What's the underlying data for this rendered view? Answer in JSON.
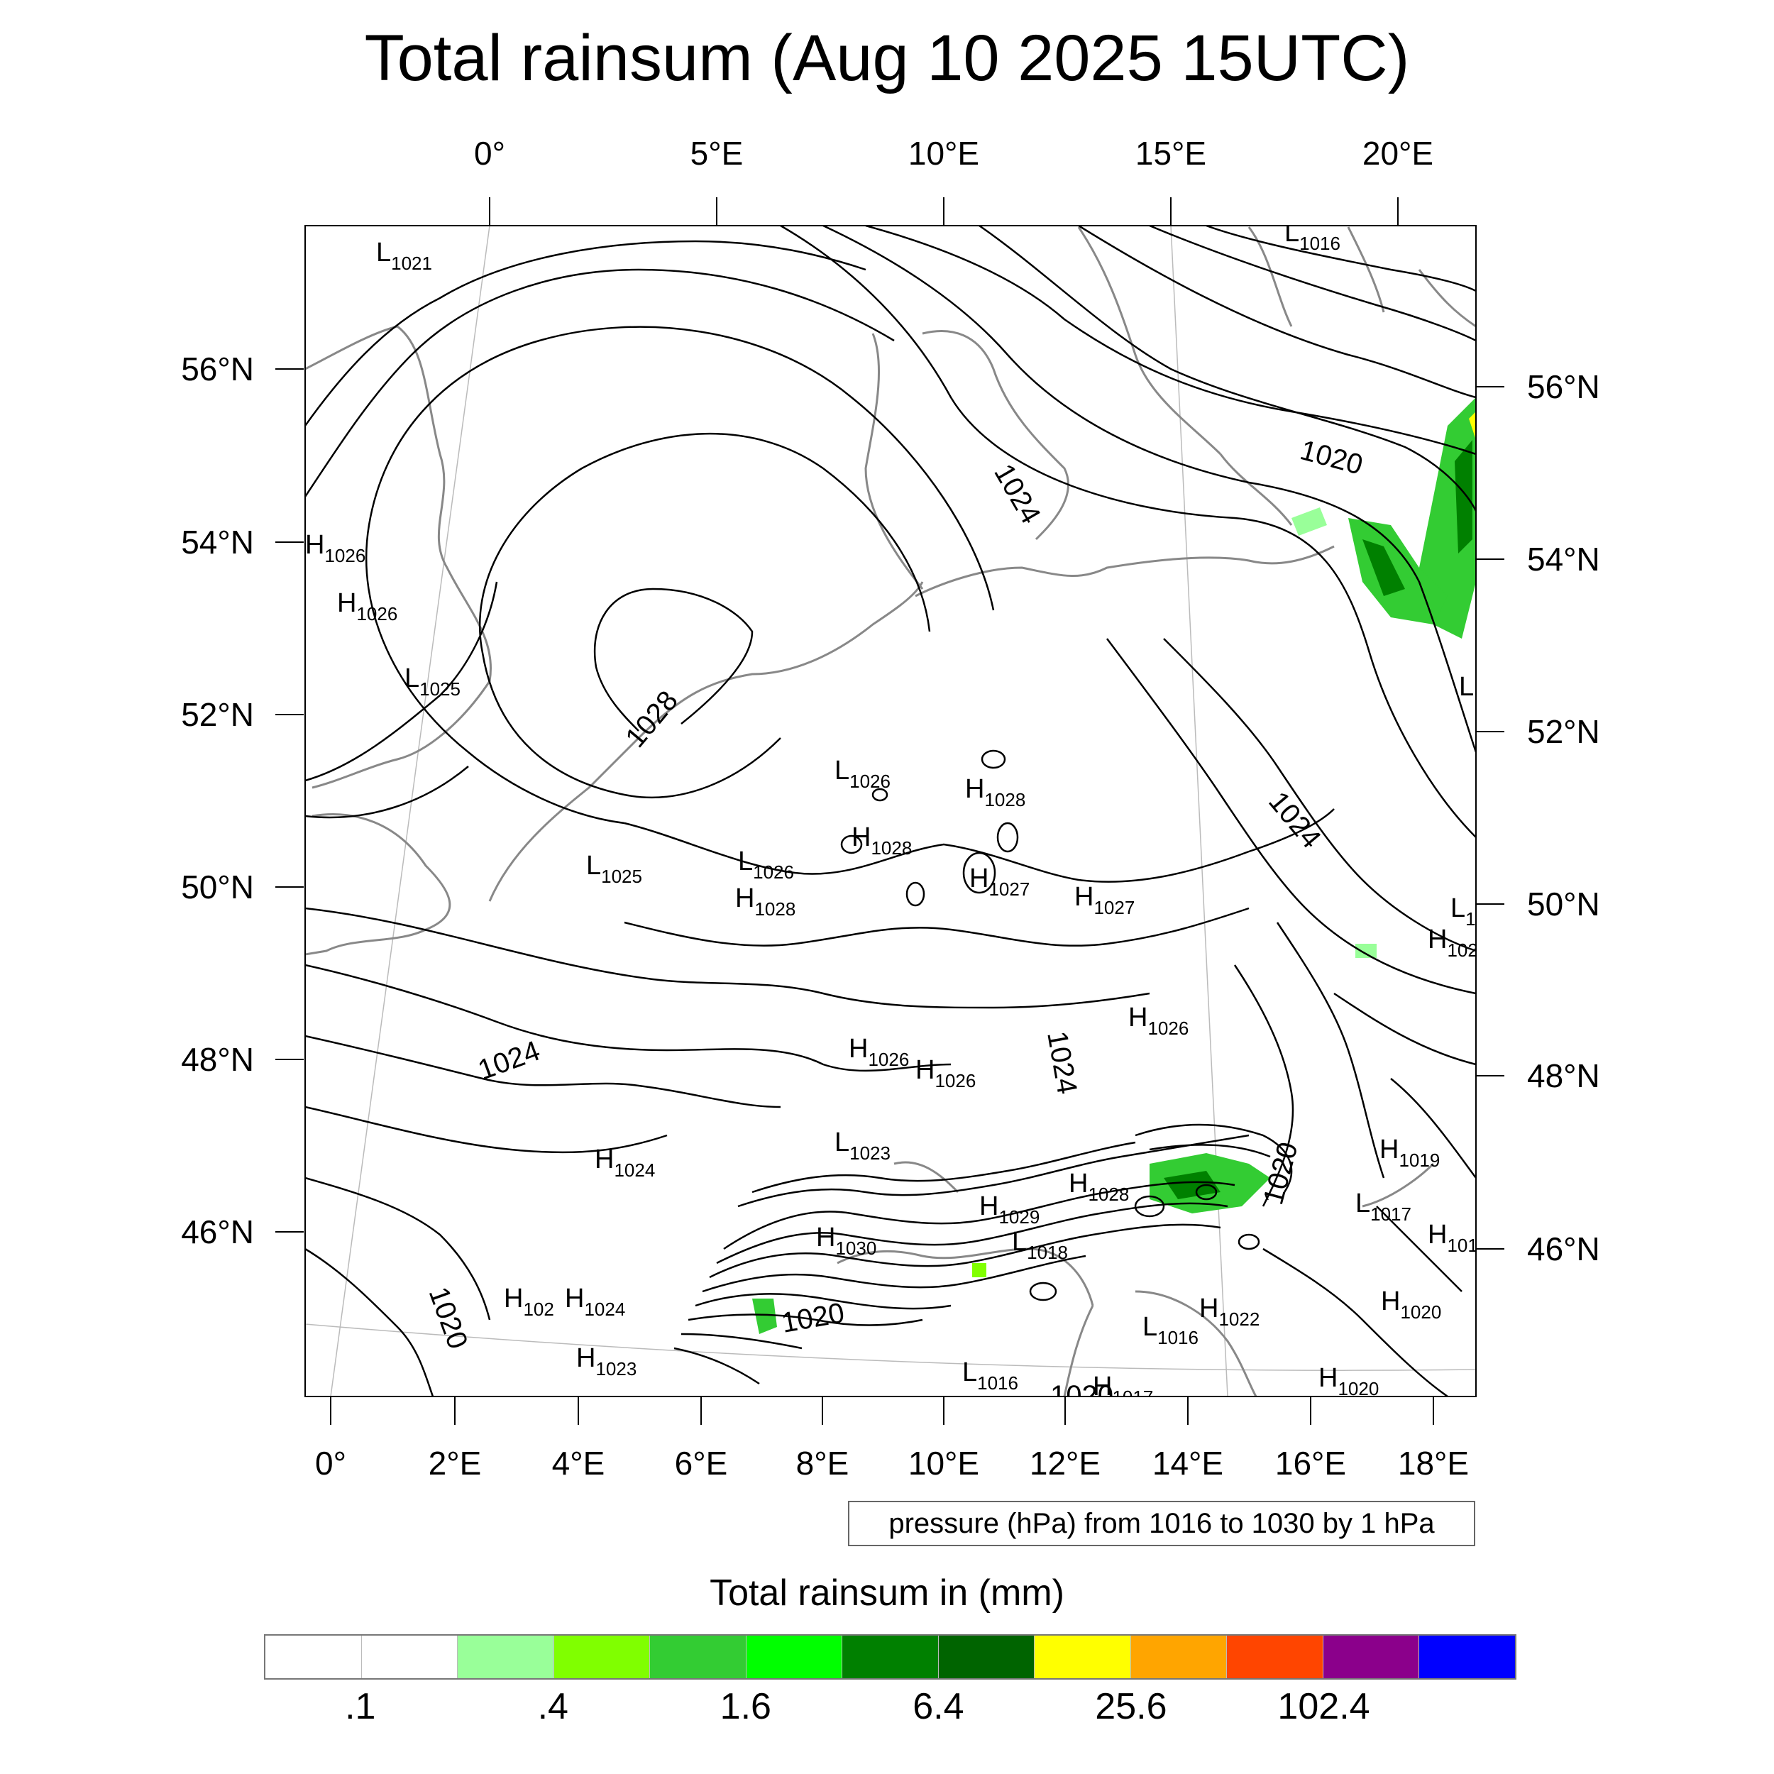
{
  "title": "Total rainsum (Aug 10 2025 15UTC)",
  "top_lon_labels": [
    "0°",
    "5°E",
    "10°E",
    "15°E",
    "20°E"
  ],
  "bottom_lon_labels": [
    "0°",
    "2°E",
    "4°E",
    "6°E",
    "8°E",
    "10°E",
    "12°E",
    "14°E",
    "16°E",
    "18°E"
  ],
  "left_lat_labels": [
    "56°N",
    "54°N",
    "52°N",
    "50°N",
    "48°N",
    "46°N"
  ],
  "right_lat_labels": [
    "56°N",
    "54°N",
    "52°N",
    "50°N",
    "48°N",
    "46°N"
  ],
  "contour_info": "pressure (hPa) from 1016 to 1030 by 1 hPa",
  "colorbar": {
    "title": "Total rainsum in (mm)",
    "colors": [
      "#ffffff",
      "#ffffff",
      "#99ff99",
      "#80ff00",
      "#33cc33",
      "#00ff00",
      "#008000",
      "#006400",
      "#ffff00",
      "#ffa500",
      "#ff4500",
      "#8b008b",
      "#0000ff"
    ],
    "labels": [
      ".1",
      ".4",
      "1.6",
      "6.4",
      "25.6",
      "102.4"
    ]
  },
  "pressure_centers": [
    {
      "type": "L",
      "value": "1021"
    },
    {
      "type": "L",
      "value": "1016"
    },
    {
      "type": "H",
      "value": "1026"
    },
    {
      "type": "H",
      "value": "1026"
    },
    {
      "type": "L",
      "value": "1025"
    },
    {
      "type": "L",
      "value": "1026"
    },
    {
      "type": "H",
      "value": "1028"
    },
    {
      "type": "H",
      "value": "1028"
    },
    {
      "type": "L",
      "value": "1026"
    },
    {
      "type": "H",
      "value": "1028"
    },
    {
      "type": "H",
      "value": "1027"
    },
    {
      "type": "L",
      "value": "1025"
    },
    {
      "type": "H",
      "value": "1027"
    },
    {
      "type": "H",
      "value": "1026"
    },
    {
      "type": "H",
      "value": "1026"
    },
    {
      "type": "H",
      "value": "1026"
    },
    {
      "type": "H",
      "value": "1024"
    },
    {
      "type": "L",
      "value": "1023"
    },
    {
      "type": "H",
      "value": "1028"
    },
    {
      "type": "H",
      "value": "1029"
    },
    {
      "type": "H",
      "value": "1030"
    },
    {
      "type": "L",
      "value": "1018"
    },
    {
      "type": "H",
      "value": "1019"
    },
    {
      "type": "L",
      "value": "1017"
    },
    {
      "type": "H",
      "value": "102"
    },
    {
      "type": "H",
      "value": "1024"
    },
    {
      "type": "H",
      "value": "1023"
    },
    {
      "type": "L",
      "value": "1016"
    },
    {
      "type": "L",
      "value": "1016"
    },
    {
      "type": "H",
      "value": "1022"
    },
    {
      "type": "H",
      "value": "1020"
    },
    {
      "type": "H",
      "value": "1020"
    },
    {
      "type": "H",
      "value": "1017"
    },
    {
      "type": "L",
      "value": ""
    },
    {
      "type": "L",
      "value": "1"
    },
    {
      "type": "H",
      "value": "102"
    },
    {
      "type": "H",
      "value": "101"
    }
  ],
  "contour_labels": [
    "1028",
    "1024",
    "1024",
    "1024",
    "1020",
    "1020",
    "1024",
    "1020",
    "1020",
    "1020"
  ]
}
